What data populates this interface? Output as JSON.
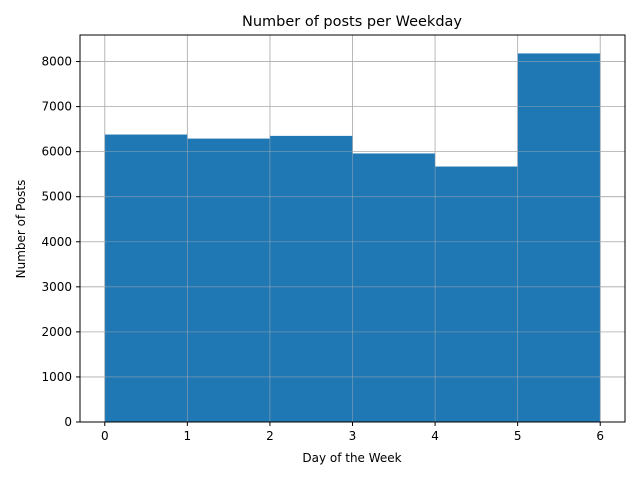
{
  "chart_data": {
    "type": "bar",
    "title": "Number of posts per Weekday",
    "xlabel": "Day of the Week",
    "ylabel": "Number of Posts",
    "bins": [
      {
        "x0": 0,
        "x1": 1,
        "value": 6380
      },
      {
        "x0": 1,
        "x1": 2,
        "value": 6290
      },
      {
        "x0": 2,
        "x1": 3,
        "value": 6350
      },
      {
        "x0": 3,
        "x1": 4,
        "value": 5960
      },
      {
        "x0": 4,
        "x1": 5,
        "value": 5670
      },
      {
        "x0": 5,
        "x1": 6,
        "value": 8180
      }
    ],
    "xticks": [
      0,
      1,
      2,
      3,
      4,
      5,
      6
    ],
    "yticks": [
      0,
      1000,
      2000,
      3000,
      4000,
      5000,
      6000,
      7000,
      8000
    ],
    "xlim": [
      -0.3,
      6.3
    ],
    "ylim": [
      0,
      8589
    ],
    "grid": true,
    "bar_color": "#1f77b4",
    "grid_color": "#b0b0b0"
  }
}
